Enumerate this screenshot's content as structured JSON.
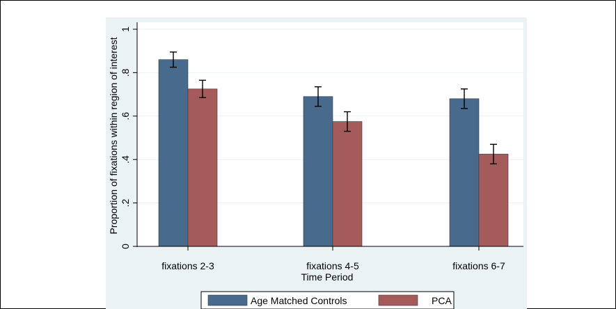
{
  "chart_data": {
    "type": "bar",
    "categories": [
      "fixations 2-3",
      "fixations 4-5",
      "fixations 6-7"
    ],
    "series": [
      {
        "name": "Age Matched Controls",
        "color": "#486a8c",
        "values": [
          0.86,
          0.69,
          0.68
        ],
        "ci_low": [
          0.825,
          0.645,
          0.635
        ],
        "ci_high": [
          0.895,
          0.735,
          0.725
        ]
      },
      {
        "name": "PCA",
        "color": "#a65b5b",
        "values": [
          0.725,
          0.575,
          0.425
        ],
        "ci_low": [
          0.685,
          0.53,
          0.38
        ],
        "ci_high": [
          0.765,
          0.62,
          0.47
        ]
      }
    ],
    "xlabel": "Time Period",
    "ylabel": "Proportion of fixations within region of interest",
    "ylim": [
      0,
      1
    ],
    "yticks": [
      0,
      0.2,
      0.4,
      0.6,
      0.8,
      1
    ],
    "ytick_labels": [
      "0",
      ".2",
      ".4",
      ".6",
      ".8",
      "1"
    ],
    "grid": true,
    "legend_position": "bottom",
    "background": "#eaf2f3"
  }
}
